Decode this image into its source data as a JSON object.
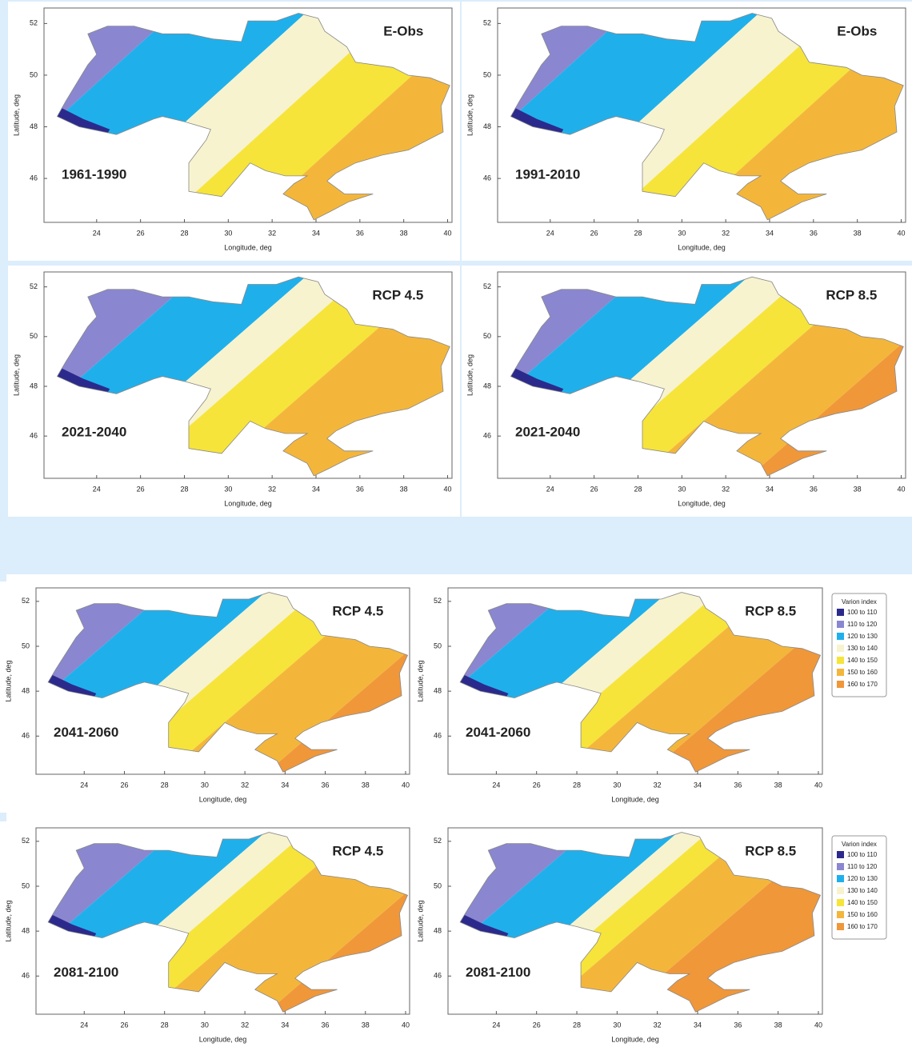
{
  "axes": {
    "xticks": [
      "24",
      "26",
      "28",
      "30",
      "32",
      "34",
      "36",
      "38",
      "40"
    ],
    "yticks": [
      "52",
      "50",
      "48",
      "46"
    ],
    "xlabel": "Longitude, deg",
    "ylabel": "Latitude, deg"
  },
  "panels": [
    {
      "scenario": "E-Obs",
      "period": "1961-1990"
    },
    {
      "scenario": "E-Obs",
      "period": "1991-2010"
    },
    {
      "scenario": "RCP 4.5",
      "period": "2021-2040"
    },
    {
      "scenario": "RCP 8.5",
      "period": "2021-2040"
    },
    {
      "scenario": "RCP 4.5",
      "period": "2041-2060"
    },
    {
      "scenario": "RCP 8.5",
      "period": "2041-2060"
    },
    {
      "scenario": "RCP 4.5",
      "period": "2081-2100"
    },
    {
      "scenario": "RCP 8.5",
      "period": "2081-2100"
    }
  ],
  "legends": [
    {
      "title": "Varion index",
      "items": [
        "100 to 110",
        "110 to 120",
        "120 to 130",
        "130 to 140",
        "140 to 150",
        "150 to 160",
        "160 to 170"
      ]
    },
    {
      "title": "Varion index",
      "items": [
        "100 to 110",
        "110 to 120",
        "120 to 130",
        "130 to 140",
        "140 to 150",
        "150 to 160",
        "160 to 170"
      ]
    }
  ]
}
